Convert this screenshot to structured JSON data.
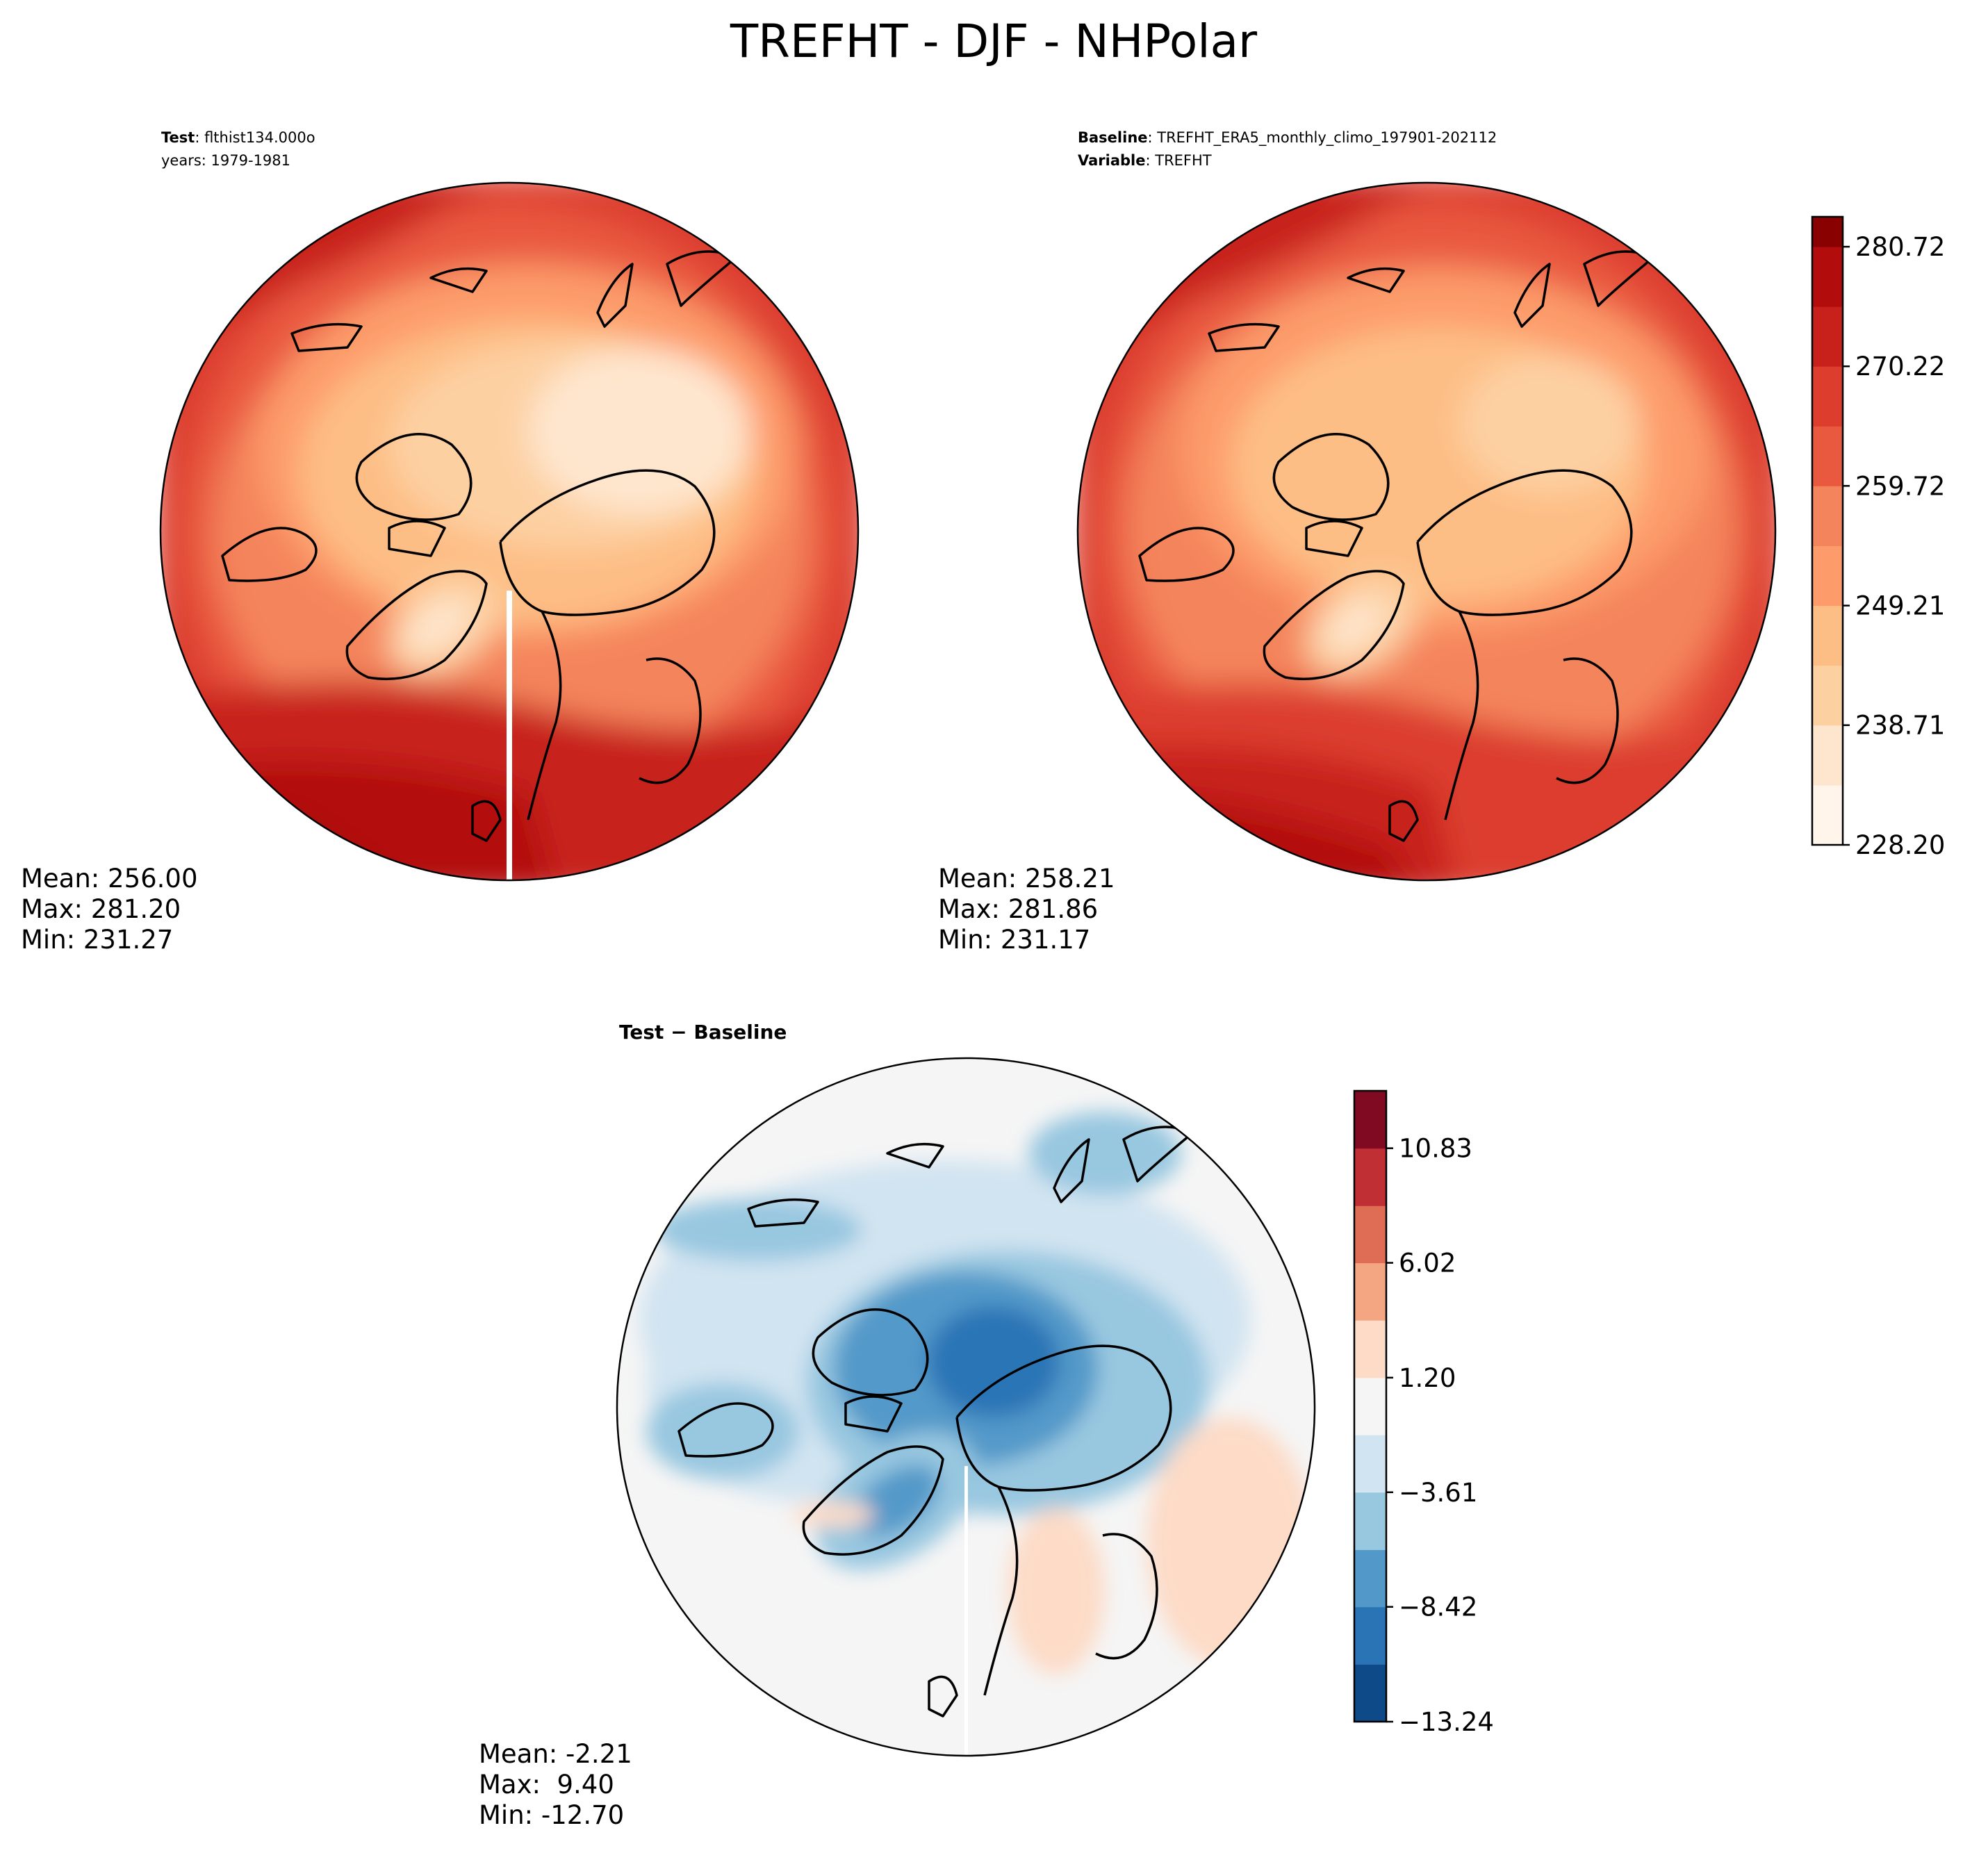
{
  "figure_title": "TREFHT - DJF - NHPolar",
  "chart_data": [
    {
      "type": "heatmap",
      "panel": "test",
      "projection": "north-polar-stereographic",
      "header": {
        "line1_bold": "Test",
        "line1_rest": ": flthist134.000o",
        "line2": "years: 1979-1981"
      },
      "stats": {
        "mean": "Mean: 256.00",
        "max": "Max: 281.20",
        "min": "Min: 231.27"
      },
      "approx_field": {
        "center_value": 236,
        "edge_atlantic_value": 279,
        "edge_pacific_value": 266,
        "greenland_value": 232
      }
    },
    {
      "type": "heatmap",
      "panel": "baseline",
      "projection": "north-polar-stereographic",
      "header": {
        "line1_bold": "Baseline",
        "line1_rest": ": TREFHT_ERA5_monthly_climo_197901-202112",
        "line2_bold": "Variable",
        "line2_rest": ": TREFHT"
      },
      "stats": {
        "mean": "Mean: 258.21",
        "max": "Max: 281.86",
        "min": "Min: 231.17"
      },
      "approx_field": {
        "center_value": 243,
        "edge_atlantic_value": 280,
        "edge_pacific_value": 268,
        "greenland_value": 236
      }
    },
    {
      "type": "heatmap",
      "panel": "difference",
      "projection": "north-polar-stereographic",
      "header": {
        "title_bold": "Test − Baseline"
      },
      "stats": {
        "mean": "Mean: -2.21",
        "max": "Max:  9.40",
        "min": "Min: -12.70"
      },
      "approx_field": {
        "center_value": -9,
        "edge_value": 0,
        "greenland_value": -6
      }
    }
  ],
  "colorbars": {
    "main": {
      "range": [
        228.2,
        283.35
      ],
      "levels": [
        228.2,
        233.45,
        238.71,
        243.96,
        249.21,
        254.46,
        259.72,
        264.97,
        270.22,
        275.47,
        280.72,
        283.35
      ],
      "tick_values": [
        228.2,
        238.71,
        249.21,
        259.72,
        270.22,
        280.72
      ],
      "tick_labels": [
        "228.20",
        "238.71",
        "249.21",
        "259.72",
        "270.22",
        "280.72"
      ],
      "colors": [
        "#fff5eb",
        "#fee6ce",
        "#fdd0a2",
        "#fdbe85",
        "#fd9b6a",
        "#f4845c",
        "#e9593f",
        "#dc3d2d",
        "#c8211c",
        "#b30c0c",
        "#8a0101"
      ]
    },
    "diff": {
      "range": [
        -13.24,
        13.24
      ],
      "levels": [
        -13.24,
        -10.83,
        -8.42,
        -6.02,
        -3.61,
        -1.2,
        1.2,
        3.61,
        6.02,
        8.42,
        10.83,
        13.24
      ],
      "tick_values": [
        -13.24,
        -8.42,
        -3.61,
        1.2,
        6.02,
        10.83
      ],
      "tick_labels": [
        "−13.24",
        "−8.42",
        "−3.61",
        "1.20",
        "6.02",
        "10.83"
      ],
      "colors": [
        "#0e4a88",
        "#2a74b6",
        "#5299c9",
        "#98c7e0",
        "#d1e4f1",
        "#f5f5f5",
        "#fddbc7",
        "#f4a582",
        "#df6c55",
        "#bf2f33",
        "#7f0a21"
      ]
    }
  }
}
